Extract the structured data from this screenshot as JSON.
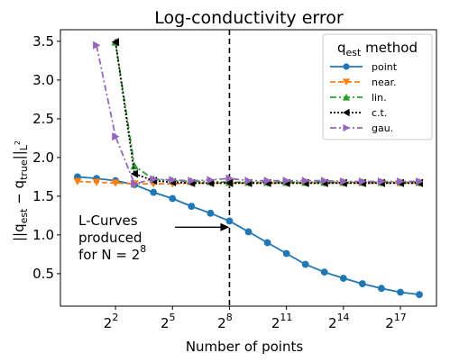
{
  "chart_data": {
    "type": "line",
    "title": "Log-conductivity error",
    "xlabel": "Number of points",
    "ylabel": "||q_est − q_true||_L²",
    "x_scale": "log2",
    "x_exponents": [
      0,
      1,
      2,
      3,
      4,
      5,
      6,
      7,
      8,
      9,
      10,
      11,
      12,
      13,
      14,
      15,
      16,
      17,
      18
    ],
    "xlim_exponent": [
      -0.9,
      18.9
    ],
    "ylim": [
      0.08,
      3.65
    ],
    "xticks": [
      {
        "label": "2",
        "exp": "2",
        "value_exponent": 2
      },
      {
        "label": "2",
        "exp": "5",
        "value_exponent": 5
      },
      {
        "label": "2",
        "exp": "8",
        "value_exponent": 8
      },
      {
        "label": "2",
        "exp": "11",
        "value_exponent": 11
      },
      {
        "label": "2",
        "exp": "14",
        "value_exponent": 14
      },
      {
        "label": "2",
        "exp": "17",
        "value_exponent": 17
      }
    ],
    "yticks": [
      "0.5",
      "1.0",
      "1.5",
      "2.0",
      "2.5",
      "3.0",
      "3.5"
    ],
    "ytick_values": [
      0.5,
      1.0,
      1.5,
      2.0,
      2.5,
      3.0,
      3.5
    ],
    "vline_exponent": 8,
    "legend": {
      "title_main": "q",
      "title_sub": "est",
      "title_rest": " method",
      "placement": "top-right"
    },
    "series": [
      {
        "name": "point",
        "color": "#1f77b4",
        "marker": "circle",
        "dash": "solid",
        "x_exp": [
          0,
          1,
          2,
          3,
          4,
          5,
          6,
          7,
          8,
          9,
          10,
          11,
          12,
          13,
          14,
          15,
          16,
          17,
          18
        ],
        "values": [
          1.75,
          1.73,
          1.7,
          1.65,
          1.55,
          1.47,
          1.37,
          1.28,
          1.18,
          1.04,
          0.9,
          0.76,
          0.62,
          0.52,
          0.44,
          0.37,
          0.31,
          0.26,
          0.23
        ]
      },
      {
        "name": "near.",
        "color": "#ff7f0e",
        "marker": "triangle-down",
        "dash": "dashed",
        "x_exp": [
          0,
          1,
          2,
          3,
          4,
          5,
          6,
          7,
          8,
          9,
          10,
          11,
          12,
          13,
          14,
          15,
          16,
          17,
          18
        ],
        "values": [
          1.69,
          1.68,
          1.67,
          1.66,
          1.66,
          1.66,
          1.67,
          1.67,
          1.67,
          1.67,
          1.67,
          1.67,
          1.67,
          1.67,
          1.67,
          1.67,
          1.67,
          1.67,
          1.67
        ]
      },
      {
        "name": "lin.",
        "color": "#2ca02c",
        "marker": "triangle-up",
        "dash": "dashdot",
        "x_exp": [
          2,
          3,
          4,
          5,
          6,
          7,
          8,
          9,
          10,
          11,
          12,
          13,
          14,
          15,
          16,
          17,
          18
        ],
        "values": [
          3.49,
          1.89,
          1.72,
          1.7,
          1.69,
          1.69,
          1.68,
          1.68,
          1.68,
          1.68,
          1.68,
          1.68,
          1.68,
          1.68,
          1.68,
          1.68,
          1.68
        ]
      },
      {
        "name": "c.t.",
        "color": "#000000",
        "marker": "triangle-left",
        "dash": "dotted",
        "x_exp": [
          2,
          3,
          4,
          5,
          6,
          7,
          8,
          9,
          10,
          11,
          12,
          13,
          14,
          15,
          16,
          17,
          18
        ],
        "values": [
          3.49,
          1.79,
          1.7,
          1.68,
          1.67,
          1.67,
          1.67,
          1.67,
          1.67,
          1.67,
          1.67,
          1.67,
          1.67,
          1.67,
          1.67,
          1.67,
          1.67
        ]
      },
      {
        "name": "gau.",
        "color": "#9467bd",
        "marker": "triangle-right",
        "dash": "dashdot",
        "x_exp": [
          1,
          2,
          3,
          4,
          5,
          6,
          7,
          8,
          9,
          10,
          11,
          12,
          13,
          14,
          15,
          16,
          17,
          18
        ],
        "values": [
          3.45,
          2.27,
          1.66,
          1.72,
          1.71,
          1.7,
          1.71,
          1.73,
          1.7,
          1.7,
          1.7,
          1.7,
          1.7,
          1.69,
          1.69,
          1.69,
          1.69,
          1.69
        ]
      }
    ],
    "annotation": {
      "lines": [
        "L-Curves",
        "produced",
        "for N = 2"
      ],
      "exp": "8",
      "arrow_target_exponent": 8,
      "arrow_target_y": 1.1
    }
  }
}
